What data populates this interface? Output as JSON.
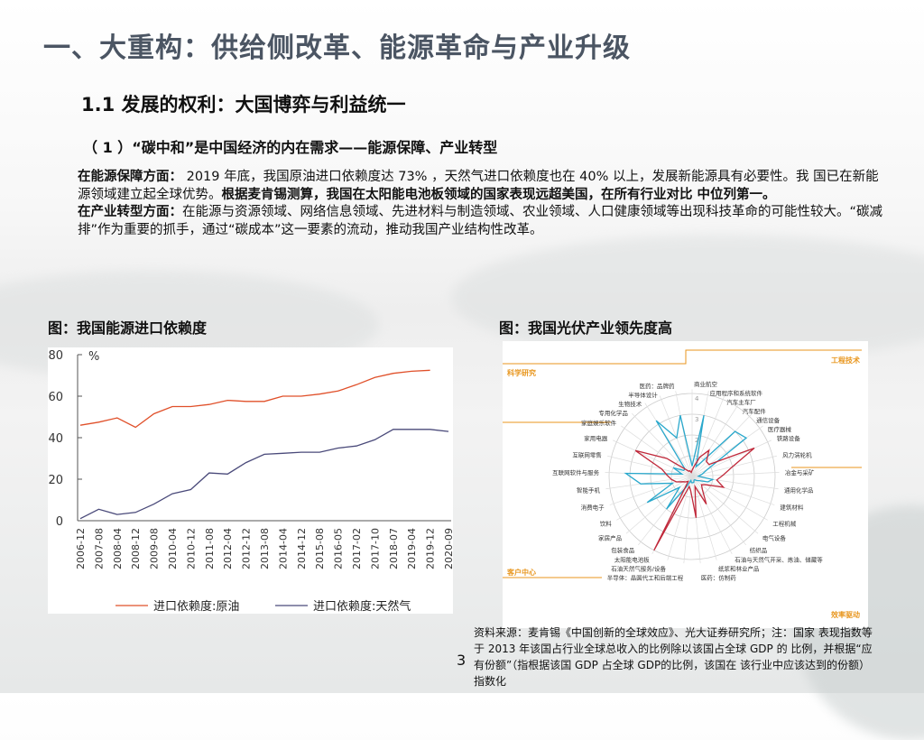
{
  "title": "一、大重构：供给侧改革、能源革命与产业升级",
  "section": "1.1  发展的权利：大国博弈与利益统一",
  "subsection": "（ 1 ）“碳中和”是中国经济的内在需求——能源保障、产业转型",
  "paragraphs": {
    "p1_head": "在能源保障方面：",
    "p1_text": " 2019 年底，我国原油进口依赖度达 73% ，天然气进口依赖度也在 40% 以上，发展新能源具有必要性。我 国已在新能源领域建立起全球优势。",
    "p1_bold": "根据麦肯锡测算，我国在太阳能电池板领域的国家表现远超美国，在所有行业对比 中位列第一。",
    "p2_head": "在产业转型方面：",
    "p2_text": "在能源与资源领域、网络信息领域、先进材料与制造领域、农业领域、人口健康领域等出现科技革命的可能性较大。“碳减排”作为重要的抓手，通过“碳成本”这一要素的流动，推动我国产业结构性改革。"
  },
  "fig1_caption": "图：我国能源进口依赖度",
  "fig2_caption": "图：我国光伏产业领先度高",
  "source_note": "资料来源：麦肯锡《中国创新的全球效应》、光大证券研究所；注：国家 表现指数等于 2013 年该国占行业全球总收入的比例除以该国占全球 GDP 的 比例，并根据“应有份额”（指根据该国 GDP 占全球 GDP的比例，该国在 该行业中应该达到的份额）指数化",
  "page_number": "3",
  "chart_data": [
    {
      "type": "line",
      "ylabel": "%",
      "ylim": [
        0,
        80
      ],
      "yticks": [
        "0",
        "20",
        "40",
        "60",
        "80"
      ],
      "categories": [
        "2006-12",
        "2007-08",
        "2008-04",
        "2008-12",
        "2009-08",
        "2010-04",
        "2010-12",
        "2011-08",
        "2012-04",
        "2012-12",
        "2013-08",
        "2014-04",
        "2014-12",
        "2015-08",
        "2016-05",
        "2017-02",
        "2017-10",
        "2018-07",
        "2019-04",
        "2019-12",
        "2020-09"
      ],
      "grid": false,
      "legend_position": "bottom",
      "series": [
        {
          "name": "进口依赖度:原油",
          "color": "#e0502a",
          "values": [
            46,
            47.5,
            49.5,
            45,
            51.5,
            55,
            55,
            56,
            58,
            57.5,
            57.5,
            60,
            60,
            61,
            62.5,
            65.5,
            69,
            71,
            72,
            72.5,
            null
          ]
        },
        {
          "name": "进口依赖度:天然气",
          "color": "#4a4a7a",
          "values": [
            1,
            5.5,
            3,
            4,
            8,
            13,
            15,
            23,
            22.5,
            28,
            32,
            32.5,
            33,
            33,
            35,
            36,
            39,
            44,
            44,
            44,
            43
          ]
        }
      ]
    },
    {
      "type": "radar",
      "rlim": [
        0,
        4
      ],
      "rticks": [
        "1",
        "2",
        "3",
        "4"
      ],
      "quadrants": [
        "科学研究",
        "工程技术",
        "效率驱动",
        "客户中心"
      ],
      "quadrant_color": "#e8961e",
      "axes": [
        "商业航空",
        "应用程序和系统软件",
        "汽车主车厂",
        "汽车配件",
        "通信设备",
        "医疗器械",
        "铁路设备",
        "风力涡轮机",
        "冶金与采矿",
        "通用化学品",
        "建筑材料",
        "工程机械",
        "电气设备",
        "纺织品",
        "石油与天然气开采、炼油、储藏等",
        "纸浆和林业产品",
        "医药：仿制药",
        "半导体：晶圆代工和后端工程",
        "石油天然气服务/设备",
        "太阳能电池板",
        "包装食品",
        "家居产品",
        "饮料",
        "消费电子",
        "智能手机",
        "互联网软件与服务",
        "互联网零售",
        "家用电器",
        "家庭娱乐软件",
        "专用化学品",
        "生物技术",
        "半导体设计",
        "医药：品牌药"
      ],
      "series": [
        {
          "color": "#29a8cc",
          "values": [
            0.5,
            3,
            0.5,
            0.8,
            3,
            3.2,
            0.8,
            0.5,
            0.3,
            1,
            0.8,
            0.4,
            0.3,
            0.2,
            0.2,
            0.3,
            0.3,
            0.3,
            0.2,
            0.5,
            2,
            0.8,
            2.5,
            1,
            2.5,
            3.2,
            0.5,
            1,
            0.5,
            0.5,
            3.2,
            2,
            3
          ]
        },
        {
          "color": "#c0283a",
          "values": [
            0.3,
            0.5,
            1,
            1.5,
            1,
            1,
            3.3,
            2,
            1.5,
            1.2,
            1.6,
            0.8,
            0.6,
            0.8,
            1.5,
            0.5,
            2,
            0.7,
            0.5,
            4,
            0.3,
            0.4,
            0.5,
            0.8,
            1,
            1.2,
            1.5,
            3,
            1.5,
            0.5,
            0.3,
            0.3,
            0.2
          ]
        }
      ]
    }
  ]
}
